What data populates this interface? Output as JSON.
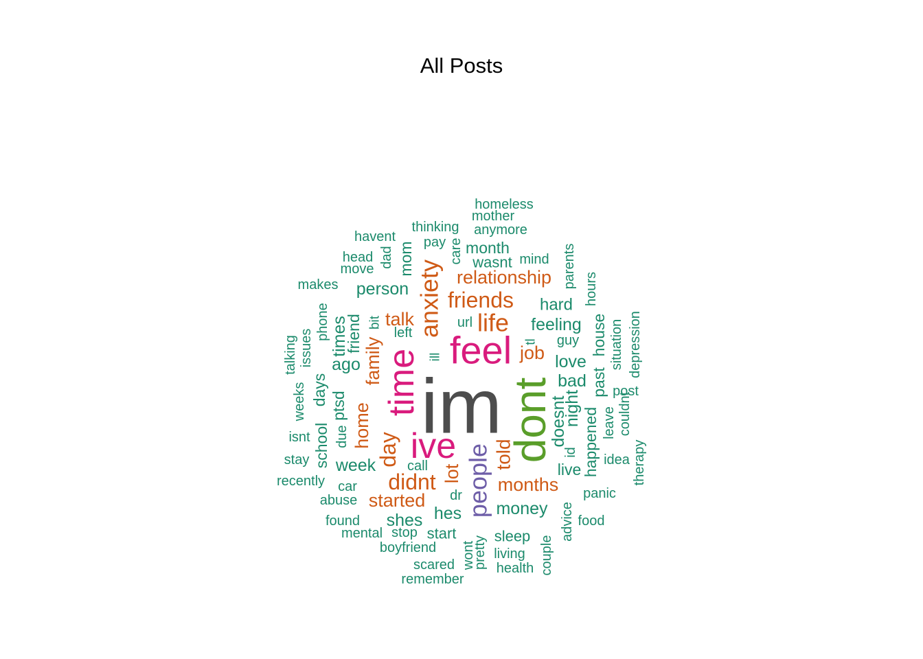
{
  "page": {
    "title": "All Posts"
  },
  "chart_data": {
    "type": "wordcloud",
    "title": "All Posts",
    "palette": {
      "dark_gray": "#4d4d4d",
      "green": "#5a9e2a",
      "magenta": "#d91b7d",
      "purple": "#6e5ea8",
      "orange": "#cf5a16",
      "teal": "#1b8a6b"
    },
    "words": [
      {
        "text": "im",
        "freq": 10,
        "color": "#4d4d4d",
        "rotated": false
      },
      {
        "text": "dont",
        "freq": 8,
        "color": "#5a9e2a",
        "rotated": true
      },
      {
        "text": "feel",
        "freq": 6,
        "color": "#d91b7d",
        "rotated": false
      },
      {
        "text": "time",
        "freq": 6,
        "color": "#d91b7d",
        "rotated": true
      },
      {
        "text": "ive",
        "freq": 6,
        "color": "#d91b7d",
        "rotated": false
      },
      {
        "text": "people",
        "freq": 5,
        "color": "#6e5ea8",
        "rotated": true
      },
      {
        "text": "anxiety",
        "freq": 4,
        "color": "#cf5a16",
        "rotated": true
      },
      {
        "text": "life",
        "freq": 4,
        "color": "#cf5a16",
        "rotated": false
      },
      {
        "text": "friends",
        "freq": 4,
        "color": "#cf5a16",
        "rotated": false
      },
      {
        "text": "didnt",
        "freq": 4,
        "color": "#cf5a16",
        "rotated": false
      },
      {
        "text": "day",
        "freq": 4,
        "color": "#cf5a16",
        "rotated": true
      },
      {
        "text": "told",
        "freq": 3,
        "color": "#cf5a16",
        "rotated": true
      },
      {
        "text": "relationship",
        "freq": 3,
        "color": "#cf5a16",
        "rotated": false
      },
      {
        "text": "family",
        "freq": 3,
        "color": "#cf5a16",
        "rotated": true
      },
      {
        "text": "home",
        "freq": 3,
        "color": "#cf5a16",
        "rotated": true
      },
      {
        "text": "job",
        "freq": 3,
        "color": "#cf5a16",
        "rotated": false
      },
      {
        "text": "started",
        "freq": 3,
        "color": "#cf5a16",
        "rotated": false
      },
      {
        "text": "months",
        "freq": 3,
        "color": "#cf5a16",
        "rotated": false
      },
      {
        "text": "talk",
        "freq": 3,
        "color": "#cf5a16",
        "rotated": false
      },
      {
        "text": "lot",
        "freq": 3,
        "color": "#cf5a16",
        "rotated": true
      },
      {
        "text": "doesnt",
        "freq": 2,
        "color": "#1b8a6b",
        "rotated": true
      },
      {
        "text": "feeling",
        "freq": 2,
        "color": "#1b8a6b",
        "rotated": false
      },
      {
        "text": "person",
        "freq": 2,
        "color": "#1b8a6b",
        "rotated": false
      },
      {
        "text": "money",
        "freq": 2,
        "color": "#1b8a6b",
        "rotated": false
      },
      {
        "text": "week",
        "freq": 2,
        "color": "#1b8a6b",
        "rotated": false
      },
      {
        "text": "hes",
        "freq": 2,
        "color": "#1b8a6b",
        "rotated": false
      },
      {
        "text": "shes",
        "freq": 2,
        "color": "#1b8a6b",
        "rotated": false
      },
      {
        "text": "bad",
        "freq": 2,
        "color": "#1b8a6b",
        "rotated": false
      },
      {
        "text": "love",
        "freq": 2,
        "color": "#1b8a6b",
        "rotated": false
      },
      {
        "text": "hard",
        "freq": 2,
        "color": "#1b8a6b",
        "rotated": false
      },
      {
        "text": "month",
        "freq": 2,
        "color": "#1b8a6b",
        "rotated": false
      },
      {
        "text": "ago",
        "freq": 2,
        "color": "#1b8a6b",
        "rotated": false
      },
      {
        "text": "times",
        "freq": 2,
        "color": "#1b8a6b",
        "rotated": true
      },
      {
        "text": "night",
        "freq": 2,
        "color": "#1b8a6b",
        "rotated": true
      },
      {
        "text": "happened",
        "freq": 2,
        "color": "#1b8a6b",
        "rotated": true
      },
      {
        "text": "house",
        "freq": 2,
        "color": "#1b8a6b",
        "rotated": true
      },
      {
        "text": "past",
        "freq": 2,
        "color": "#1b8a6b",
        "rotated": true
      },
      {
        "text": "live",
        "freq": 2,
        "color": "#1b8a6b",
        "rotated": false
      },
      {
        "text": "school",
        "freq": 2,
        "color": "#1b8a6b",
        "rotated": true
      },
      {
        "text": "days",
        "freq": 2,
        "color": "#1b8a6b",
        "rotated": true
      },
      {
        "text": "friend",
        "freq": 2,
        "color": "#1b8a6b",
        "rotated": true
      },
      {
        "text": "ptsd",
        "freq": 2,
        "color": "#1b8a6b",
        "rotated": true
      },
      {
        "text": "mom",
        "freq": 2,
        "color": "#1b8a6b",
        "rotated": true
      },
      {
        "text": "wasnt",
        "freq": 2,
        "color": "#1b8a6b",
        "rotated": false
      },
      {
        "text": "start",
        "freq": 2,
        "color": "#1b8a6b",
        "rotated": false
      },
      {
        "text": "sleep",
        "freq": 2,
        "color": "#1b8a6b",
        "rotated": false
      },
      {
        "text": "homeless",
        "freq": 1,
        "color": "#1b8a6b",
        "rotated": false
      },
      {
        "text": "mother",
        "freq": 1,
        "color": "#1b8a6b",
        "rotated": false
      },
      {
        "text": "thinking",
        "freq": 1,
        "color": "#1b8a6b",
        "rotated": false
      },
      {
        "text": "anymore",
        "freq": 1,
        "color": "#1b8a6b",
        "rotated": false
      },
      {
        "text": "havent",
        "freq": 1,
        "color": "#1b8a6b",
        "rotated": false
      },
      {
        "text": "pay",
        "freq": 1,
        "color": "#1b8a6b",
        "rotated": false
      },
      {
        "text": "care",
        "freq": 1,
        "color": "#1b8a6b",
        "rotated": true
      },
      {
        "text": "mind",
        "freq": 1,
        "color": "#1b8a6b",
        "rotated": false
      },
      {
        "text": "parents",
        "freq": 1,
        "color": "#1b8a6b",
        "rotated": true
      },
      {
        "text": "head",
        "freq": 1,
        "color": "#1b8a6b",
        "rotated": false
      },
      {
        "text": "dad",
        "freq": 1,
        "color": "#1b8a6b",
        "rotated": true
      },
      {
        "text": "move",
        "freq": 1,
        "color": "#1b8a6b",
        "rotated": false
      },
      {
        "text": "makes",
        "freq": 1,
        "color": "#1b8a6b",
        "rotated": false
      },
      {
        "text": "hours",
        "freq": 1,
        "color": "#1b8a6b",
        "rotated": true
      },
      {
        "text": "phone",
        "freq": 1,
        "color": "#1b8a6b",
        "rotated": true
      },
      {
        "text": "bit",
        "freq": 1,
        "color": "#1b8a6b",
        "rotated": true
      },
      {
        "text": "url",
        "freq": 1,
        "color": "#1b8a6b",
        "rotated": false
      },
      {
        "text": "left",
        "freq": 1,
        "color": "#1b8a6b",
        "rotated": false
      },
      {
        "text": "guy",
        "freq": 1,
        "color": "#1b8a6b",
        "rotated": false
      },
      {
        "text": "tl",
        "freq": 1,
        "color": "#1b8a6b",
        "rotated": true
      },
      {
        "text": "talking",
        "freq": 1,
        "color": "#1b8a6b",
        "rotated": true
      },
      {
        "text": "issues",
        "freq": 1,
        "color": "#1b8a6b",
        "rotated": true
      },
      {
        "text": "ill",
        "freq": 1,
        "color": "#1b8a6b",
        "rotated": true
      },
      {
        "text": "situation",
        "freq": 1,
        "color": "#1b8a6b",
        "rotated": true
      },
      {
        "text": "depression",
        "freq": 1,
        "color": "#1b8a6b",
        "rotated": true
      },
      {
        "text": "weeks",
        "freq": 1,
        "color": "#1b8a6b",
        "rotated": true
      },
      {
        "text": "post",
        "freq": 1,
        "color": "#1b8a6b",
        "rotated": false
      },
      {
        "text": "isnt",
        "freq": 1,
        "color": "#1b8a6b",
        "rotated": false
      },
      {
        "text": "due",
        "freq": 1,
        "color": "#1b8a6b",
        "rotated": true
      },
      {
        "text": "leave",
        "freq": 1,
        "color": "#1b8a6b",
        "rotated": true
      },
      {
        "text": "couldnt",
        "freq": 1,
        "color": "#1b8a6b",
        "rotated": true
      },
      {
        "text": "id",
        "freq": 1,
        "color": "#1b8a6b",
        "rotated": true
      },
      {
        "text": "stay",
        "freq": 1,
        "color": "#1b8a6b",
        "rotated": false
      },
      {
        "text": "call",
        "freq": 1,
        "color": "#1b8a6b",
        "rotated": false
      },
      {
        "text": "idea",
        "freq": 1,
        "color": "#1b8a6b",
        "rotated": false
      },
      {
        "text": "therapy",
        "freq": 1,
        "color": "#1b8a6b",
        "rotated": true
      },
      {
        "text": "recently",
        "freq": 1,
        "color": "#1b8a6b",
        "rotated": false
      },
      {
        "text": "car",
        "freq": 1,
        "color": "#1b8a6b",
        "rotated": false
      },
      {
        "text": "dr",
        "freq": 1,
        "color": "#1b8a6b",
        "rotated": false
      },
      {
        "text": "panic",
        "freq": 1,
        "color": "#1b8a6b",
        "rotated": false
      },
      {
        "text": "abuse",
        "freq": 1,
        "color": "#1b8a6b",
        "rotated": false
      },
      {
        "text": "found",
        "freq": 1,
        "color": "#1b8a6b",
        "rotated": false
      },
      {
        "text": "advice",
        "freq": 1,
        "color": "#1b8a6b",
        "rotated": true
      },
      {
        "text": "food",
        "freq": 1,
        "color": "#1b8a6b",
        "rotated": false
      },
      {
        "text": "mental",
        "freq": 1,
        "color": "#1b8a6b",
        "rotated": false
      },
      {
        "text": "stop",
        "freq": 1,
        "color": "#1b8a6b",
        "rotated": false
      },
      {
        "text": "boyfriend",
        "freq": 1,
        "color": "#1b8a6b",
        "rotated": false
      },
      {
        "text": "wont",
        "freq": 1,
        "color": "#1b8a6b",
        "rotated": true
      },
      {
        "text": "pretty",
        "freq": 1,
        "color": "#1b8a6b",
        "rotated": true
      },
      {
        "text": "living",
        "freq": 1,
        "color": "#1b8a6b",
        "rotated": false
      },
      {
        "text": "couple",
        "freq": 1,
        "color": "#1b8a6b",
        "rotated": true
      },
      {
        "text": "scared",
        "freq": 1,
        "color": "#1b8a6b",
        "rotated": false
      },
      {
        "text": "health",
        "freq": 1,
        "color": "#1b8a6b",
        "rotated": false
      },
      {
        "text": "remember",
        "freq": 1,
        "color": "#1b8a6b",
        "rotated": false
      }
    ]
  }
}
